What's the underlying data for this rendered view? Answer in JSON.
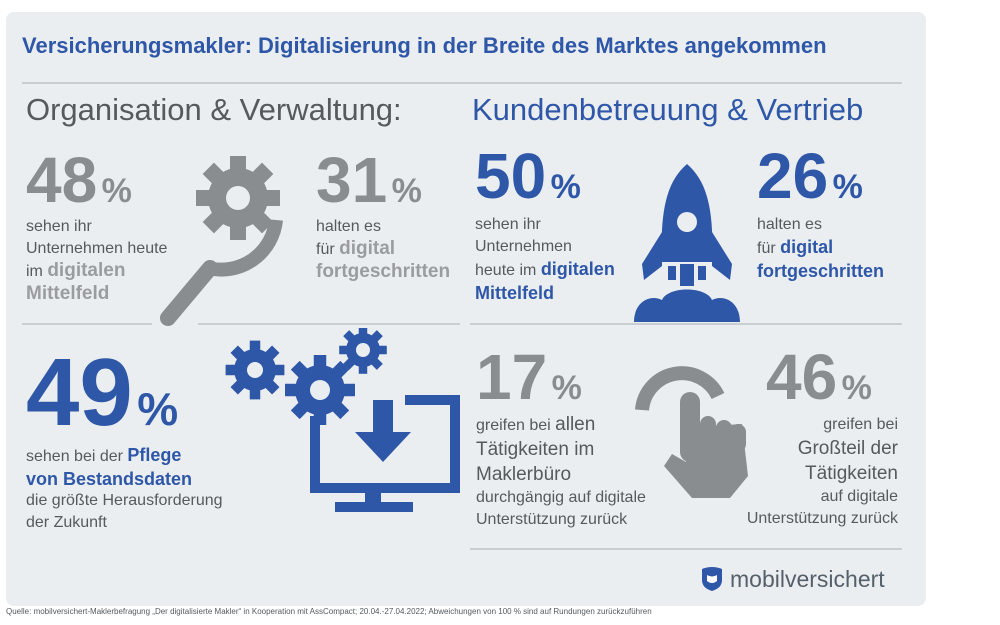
{
  "title": "Versicherungsmakler: Digitalisierung in der Breite des Marktes angekommen",
  "left_heading": "Organisation & Verwaltung:",
  "right_heading": "Kundenbetreuung & Vertrieb",
  "stats": {
    "s48": {
      "value": "48",
      "unit": "%",
      "l1": "sehen ihr",
      "l2": "Unternehmen heute",
      "l3a": "im ",
      "l3b": "digitalen",
      "l4": "Mittelfeld"
    },
    "s31": {
      "value": "31",
      "unit": "%",
      "l1": "halten es",
      "l2a": "für ",
      "l2b": "digital",
      "l3": "fortgeschritten"
    },
    "s50": {
      "value": "50",
      "unit": "%",
      "l1": "sehen ihr",
      "l2": "Unternehmen",
      "l3a": "heute im ",
      "l3b": "digitalen",
      "l4": "Mittelfeld"
    },
    "s26": {
      "value": "26",
      "unit": "%",
      "l1": "halten es",
      "l2a": "für ",
      "l2b": "digital",
      "l3": "fortgeschritten"
    },
    "s49": {
      "value": "49",
      "unit": "%",
      "l1a": "sehen bei der ",
      "l1b": "Pflege",
      "l2": "von Bestandsdaten",
      "l3": "die größte Herausforderung",
      "l4": "der Zukunft"
    },
    "s17": {
      "value": "17",
      "unit": "%",
      "l1a": "greifen bei ",
      "l1b": "allen",
      "l2": "Tätigkeiten im",
      "l3": "Maklerbüro",
      "l4": "durchgängig auf digitale",
      "l5": "Unterstützung zurück"
    },
    "s46": {
      "value": "46",
      "unit": "%",
      "l1": "greifen bei",
      "l2": "Großteil der",
      "l3": "Tätigkeiten",
      "l4": "auf digitale",
      "l5": "Unterstützung zurück"
    }
  },
  "logo_text": "mobilversichert",
  "source": "Quelle: mobilversichert-Maklerbefragung „Der digitalisierte Makler“ in Kooperation mit AssCompact; 20.04.-27.04.2022; Abweichungen von 100 % sind auf Rundungen zurückzuführen",
  "colors": {
    "blue": "#2e57a8",
    "gray": "#8a8d90",
    "dark": "#555a5e",
    "background": "#ebeef1"
  },
  "icons": [
    "gear-magnifier-icon",
    "rocket-icon",
    "gears-monitor-download-icon",
    "pointing-hand-icon",
    "shield-logo-icon"
  ]
}
